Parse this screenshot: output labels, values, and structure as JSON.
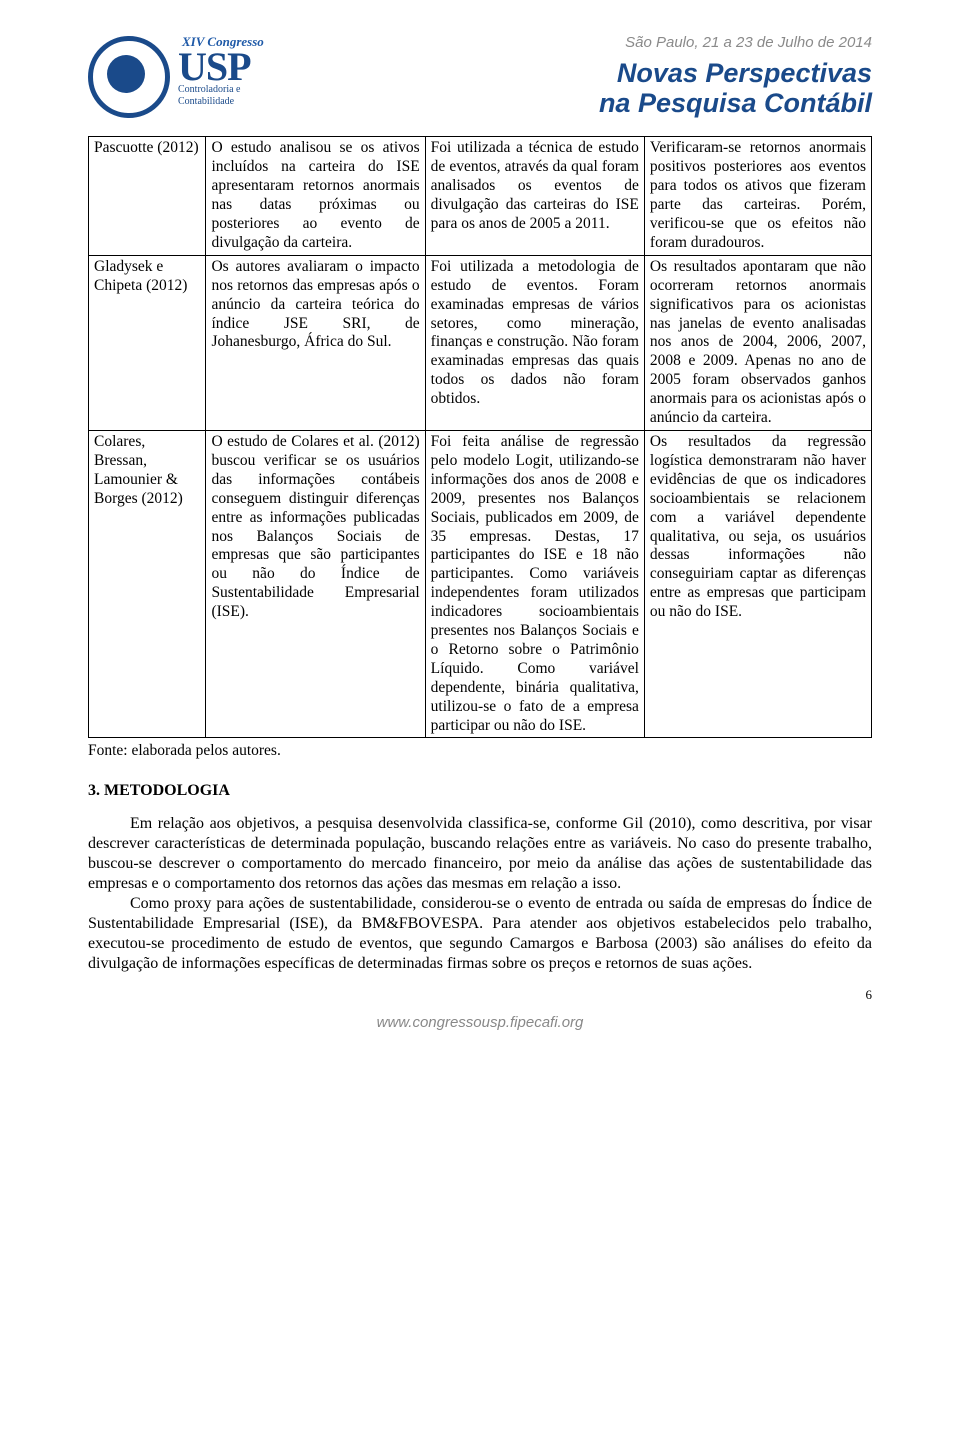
{
  "header": {
    "congress_label": "XIV Congresso",
    "usp": "USP",
    "dept1": "Controladoria e",
    "dept2": "Contabilidade",
    "location_date": "São Paulo, 21 a 23 de Julho de 2014",
    "main_title_line1": "Novas Perspectivas",
    "main_title_line2": "na Pesquisa Contábil"
  },
  "table": {
    "rows": [
      {
        "author": "Pascuotte (2012)",
        "col2": "O estudo analisou se os ativos incluídos na carteira do ISE apresentaram retornos anormais nas datas próximas ou posteriores ao evento de divulgação da carteira.",
        "col3": "Foi utilizada a técnica de estudo de eventos, através da qual foram analisados os eventos de divulgação das carteiras do ISE para os anos de 2005 a 2011.",
        "col4": "Verificaram-se retornos anormais positivos posteriores aos eventos para todos os ativos que fizeram parte das carteiras. Porém, verificou-se que os efeitos não foram duradouros."
      },
      {
        "author": "Gladysek e Chipeta (2012)",
        "col2": "Os autores avaliaram o impacto nos retornos das empresas após o anúncio da carteira teórica do índice JSE SRI, de Johanesburgo, África do Sul.",
        "col3": "Foi utilizada a metodologia de estudo de eventos. Foram examinadas empresas de vários setores, como mineração, finanças e construção. Não foram examinadas empresas das quais todos os dados não foram obtidos.",
        "col4": "Os resultados apontaram que não ocorreram retornos anormais significativos para os acionistas nas janelas de evento analisadas nos anos de 2004, 2006, 2007, 2008 e 2009. Apenas no ano de 2005 foram observados ganhos anormais para os acionistas após o anúncio da carteira."
      },
      {
        "author": "Colares, Bressan, Lamounier & Borges (2012)",
        "col2": "O estudo de Colares et al. (2012) buscou verificar se os usuários das informações contábeis conseguem distinguir diferenças entre as informações publicadas nos Balanços Sociais de empresas que são participantes ou não do Índice de Sustentabilidade Empresarial (ISE).",
        "col3": "Foi feita análise de regressão pelo modelo Logit, utilizando-se informações dos anos de 2008 e 2009, presentes nos Balanços Sociais, publicados em 2009, de 35 empresas. Destas, 17 participantes do ISE e 18 não participantes. Como variáveis independentes foram utilizados indicadores socioambientais presentes nos Balanços Sociais e o Retorno sobre o Patrimônio Líquido. Como variável dependente, binária qualitativa, utilizou-se o fato de a empresa participar ou não do ISE.",
        "col4": "Os resultados da regressão logística demonstraram não haver evidências de que os indicadores socioambientais se relacionem com a variável dependente qualitativa, ou seja, os usuários dessas informações não conseguiriam captar as diferenças entre as empresas que participam ou não do ISE."
      }
    ],
    "source": "Fonte: elaborada pelos autores."
  },
  "section": {
    "heading": "3. METODOLOGIA",
    "p1": "Em relação aos objetivos, a pesquisa desenvolvida classifica-se, conforme Gil (2010), como descritiva, por visar descrever características de determinada população, buscando relações entre as variáveis. No caso do presente trabalho, buscou-se descrever o comportamento do mercado financeiro, por meio da análise das ações de sustentabilidade das empresas e o comportamento dos retornos das ações das mesmas em relação a isso.",
    "p2": "Como proxy para ações de sustentabilidade, considerou-se o evento de entrada ou saída de empresas do Índice de Sustentabilidade Empresarial (ISE), da BM&FBOVESPA. Para atender aos objetivos estabelecidos pelo trabalho, executou-se procedimento de estudo de eventos, que segundo Camargos e Barbosa (2003) são análises do efeito da divulgação de informações específicas de determinadas firmas sobre os preços e retornos de suas ações."
  },
  "footer": {
    "url": "www.congressousp.fipecafi.org",
    "page_number": "6"
  }
}
